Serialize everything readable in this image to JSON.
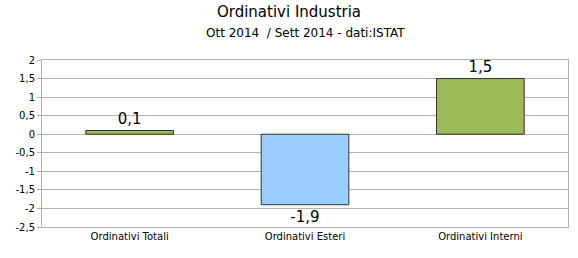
{
  "chart_data": {
    "type": "bar",
    "title": "Ordinativi Industria",
    "subtitle": "Ott 2014  / Sett 2014 - dati:ISTAT",
    "categories": [
      "Ordinativi Totali",
      "Ordinativi Esteri",
      "Ordinativi Interni"
    ],
    "values": [
      0.1,
      -1.9,
      1.5
    ],
    "value_labels": [
      "0,1",
      "-1,9",
      "1,5"
    ],
    "colors": [
      "#9bbb59",
      "#99ccff",
      "#9bbb59"
    ],
    "ylim": [
      -2.5,
      2
    ],
    "yticks": [
      {
        "value": -2.5,
        "label": "-2,5"
      },
      -2,
      {
        "value": -1.5,
        "label": "-1,5"
      },
      -1,
      {
        "value": -0.5,
        "label": "-0,5"
      },
      0,
      {
        "value": 0.5,
        "label": "0,5"
      },
      1,
      {
        "value": 1.5,
        "label": "1,5"
      },
      2
    ],
    "grid": true,
    "data_labels": true
  }
}
